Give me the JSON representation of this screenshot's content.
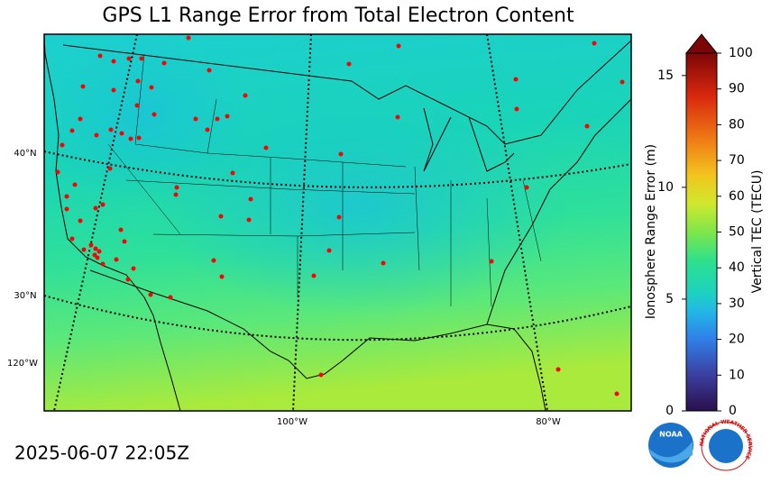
{
  "title": "GPS L1 Range Error from Total Electron Content",
  "timestamp": "2025-06-07 22:05Z",
  "map": {
    "lat_labels": [
      "40°N",
      "30°N"
    ],
    "lon_labels": [
      "120°W",
      "100°W",
      "80°W"
    ]
  },
  "colorbar": {
    "left_label": "Ionosphere Range Error (m)",
    "left_lim": [
      0,
      16
    ],
    "left_ticks": [
      0,
      5,
      10,
      15
    ],
    "right_label": "Vertical TEC (TECU)",
    "right_lim": [
      0,
      100
    ],
    "right_ticks": [
      0,
      10,
      20,
      30,
      40,
      50,
      60,
      70,
      80,
      90,
      100
    ]
  },
  "logos": {
    "noaa": "NOAA",
    "nws": "NATIONAL WEATHER SERVICE"
  }
}
